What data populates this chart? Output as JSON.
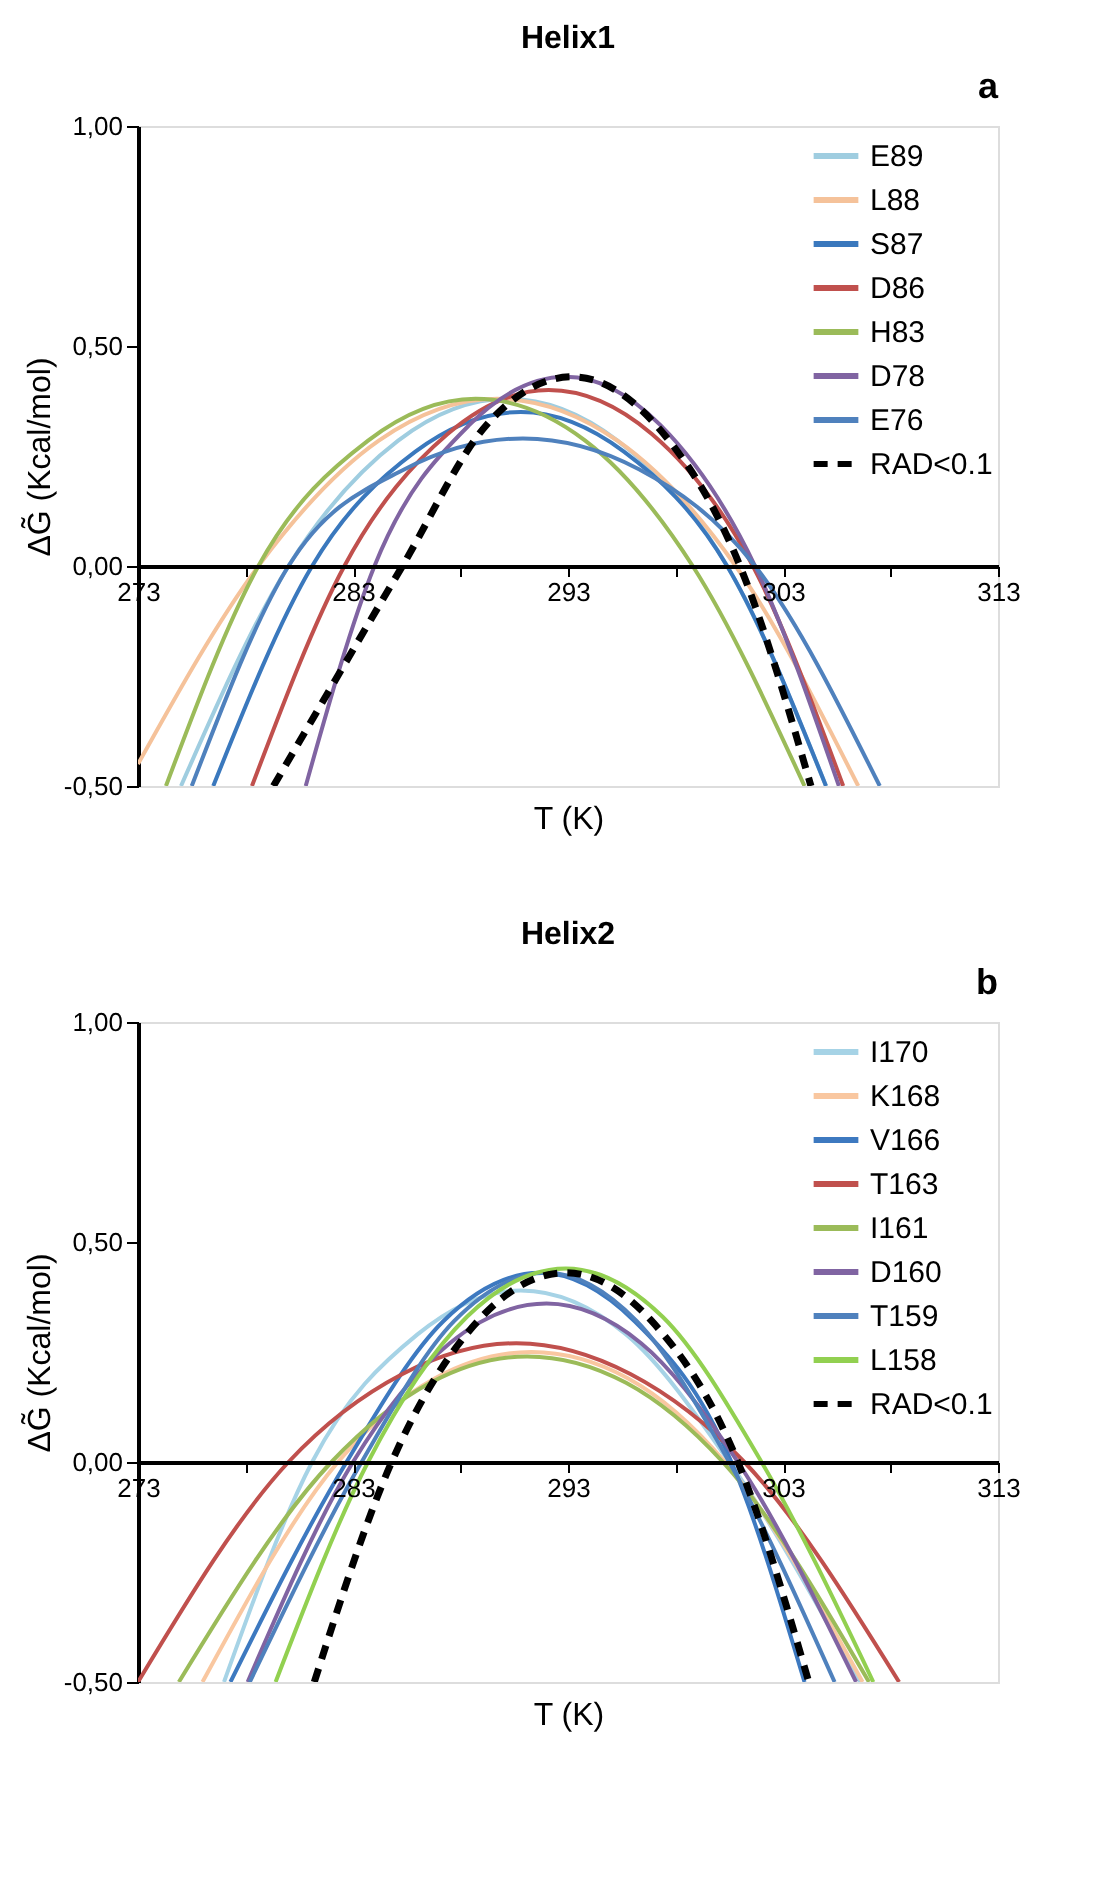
{
  "chart_data": [
    {
      "type": "line",
      "title": "Helix1",
      "annotations": [
        "a"
      ],
      "xlabel": "T (K)",
      "ylabel": "ΔG̃ (Kcal/mol)",
      "xlim": [
        273,
        313
      ],
      "ylim": [
        -0.5,
        1
      ],
      "xticks": [
        273,
        {
          "value": 278,
          "label": null
        },
        283,
        {
          "value": 288,
          "label": null
        },
        293,
        {
          "value": 298,
          "label": null
        },
        303,
        {
          "value": 308,
          "label": null
        },
        313
      ],
      "yticks": [
        {
          "value": -0.5,
          "label": "-0,50"
        },
        {
          "value": 0,
          "label": "0,00"
        },
        {
          "value": 0.5,
          "label": "0,50"
        },
        {
          "value": 1,
          "label": "1,00"
        }
      ],
      "grid": false,
      "legend": "top right",
      "line_style": "solid",
      "series": [
        {
          "name": "E89",
          "color": "#9fcde0",
          "x": [
            275.0,
            280.0,
            285.1,
            290.2,
            295.3,
            300.4,
            305.0
          ],
          "values": [
            -0.5,
            0,
            0.285,
            0.38,
            0.285,
            0,
            -0.5
          ]
        },
        {
          "name": "L88",
          "color": "#f5c29a",
          "x": [
            273.0,
            278.6,
            284.2,
            289.7,
            295.3,
            300.8,
            306.5
          ],
          "values": [
            -0.45,
            0,
            0.285,
            0.38,
            0.285,
            0,
            -0.5
          ]
        },
        {
          "name": "S87",
          "color": "#3a78bd",
          "x": [
            276.5,
            281.1,
            285.9,
            290.8,
            295.6,
            300.4,
            305.0
          ],
          "values": [
            -0.5,
            0,
            0.26,
            0.35,
            0.26,
            0,
            -0.5
          ]
        },
        {
          "name": "D86",
          "color": "#c0504d",
          "x": [
            278.3,
            282.6,
            287.4,
            292.1,
            296.9,
            301.6,
            305.8
          ],
          "values": [
            -0.5,
            0,
            0.3,
            0.4,
            0.3,
            0,
            -0.5
          ]
        },
        {
          "name": "H83",
          "color": "#9bbb59",
          "x": [
            274.3,
            278.6,
            283.7,
            288.7,
            293.8,
            298.8,
            304.0
          ],
          "values": [
            -0.5,
            0,
            0.285,
            0.38,
            0.285,
            0,
            -0.5
          ]
        },
        {
          "name": "D78",
          "color": "#8064a2",
          "x": [
            280.8,
            284.0,
            288.4,
            292.9,
            297.3,
            301.7,
            305.6
          ],
          "values": [
            -0.5,
            0,
            0.32,
            0.43,
            0.32,
            0,
            -0.5
          ]
        },
        {
          "name": "E76",
          "color": "#4f81bd",
          "x": [
            275.5,
            280.0,
            285.4,
            290.9,
            296.3,
            301.7,
            307.5
          ],
          "values": [
            -0.5,
            0,
            0.22,
            0.29,
            0.22,
            0,
            -0.5
          ]
        },
        {
          "name": "RAD<0.1",
          "color": "#000000",
          "line_style": "dashed",
          "x": [
            279.3,
            285.3,
            289.2,
            293.2,
            297.1,
            301.0,
            304.3
          ],
          "values": [
            -0.5,
            0,
            0.32,
            0.43,
            0.32,
            0,
            -0.5
          ]
        }
      ]
    },
    {
      "type": "line",
      "title": "Helix2",
      "annotations": [
        "b"
      ],
      "xlabel": "T (K)",
      "ylabel": "ΔG̃ (Kcal/mol)",
      "xlim": [
        273,
        313
      ],
      "ylim": [
        -0.5,
        1
      ],
      "xticks": [
        273,
        {
          "value": 278,
          "label": null
        },
        283,
        {
          "value": 288,
          "label": null
        },
        293,
        {
          "value": 298,
          "label": null
        },
        303,
        {
          "value": 308,
          "label": null
        },
        313
      ],
      "yticks": [
        {
          "value": -0.5,
          "label": "-0,50"
        },
        {
          "value": 0,
          "label": "0,00"
        },
        {
          "value": 0.5,
          "label": "0,50"
        },
        {
          "value": 1,
          "label": "1,00"
        }
      ],
      "grid": false,
      "legend": "top right",
      "line_style": "solid",
      "series": [
        {
          "name": "I170",
          "color": "#a6d3e6",
          "x": [
            277.0,
            281.1,
            286.0,
            290.8,
            295.7,
            300.5,
            306.6
          ],
          "values": [
            -0.5,
            0,
            0.29,
            0.39,
            0.29,
            0,
            -0.5
          ]
        },
        {
          "name": "K168",
          "color": "#f9c7a0",
          "x": [
            276.0,
            282.3,
            286.8,
            291.3,
            295.8,
            300.3,
            306.7
          ],
          "values": [
            -0.5,
            0,
            0.19,
            0.25,
            0.19,
            0,
            -0.5
          ]
        },
        {
          "name": "V166",
          "color": "#3d79c0",
          "x": [
            277.3,
            282.7,
            287.2,
            291.7,
            296.1,
            300.6,
            304.0
          ],
          "values": [
            -0.5,
            0,
            0.32,
            0.43,
            0.32,
            0,
            -0.5
          ]
        },
        {
          "name": "T163",
          "color": "#c0504d",
          "x": [
            273.0,
            280.0,
            285.3,
            290.6,
            295.9,
            301.2,
            308.4
          ],
          "values": [
            -0.5,
            0,
            0.2,
            0.27,
            0.2,
            0,
            -0.5
          ]
        },
        {
          "name": "I161",
          "color": "#9bbb59",
          "x": [
            274.9,
            282.0,
            286.6,
            291.1,
            295.7,
            300.2,
            307.0
          ],
          "values": [
            -0.5,
            0,
            0.18,
            0.24,
            0.18,
            0,
            -0.5
          ]
        },
        {
          "name": "D160",
          "color": "#8064a2",
          "x": [
            278.1,
            283.0,
            287.5,
            292.0,
            296.4,
            300.9,
            306.4
          ],
          "values": [
            -0.5,
            0,
            0.27,
            0.36,
            0.27,
            0,
            -0.5
          ]
        },
        {
          "name": "T159",
          "color": "#4f81bd",
          "x": [
            278.2,
            283.4,
            287.7,
            292.0,
            296.2,
            300.5,
            305.4
          ],
          "values": [
            -0.5,
            0,
            0.32,
            0.43,
            0.32,
            0,
            -0.5
          ]
        },
        {
          "name": "L158",
          "color": "#92d050",
          "x": [
            279.4,
            283.7,
            288.3,
            292.9,
            297.4,
            302.0,
            307.2
          ],
          "values": [
            -0.5,
            0,
            0.33,
            0.44,
            0.33,
            0,
            -0.5
          ]
        },
        {
          "name": "RAD<0.1",
          "color": "#000000",
          "line_style": "dashed",
          "x": [
            281.2,
            284.8,
            288.8,
            292.9,
            296.9,
            300.9,
            304.2
          ],
          "values": [
            -0.5,
            0,
            0.32,
            0.43,
            0.32,
            0,
            -0.5
          ]
        }
      ]
    }
  ]
}
